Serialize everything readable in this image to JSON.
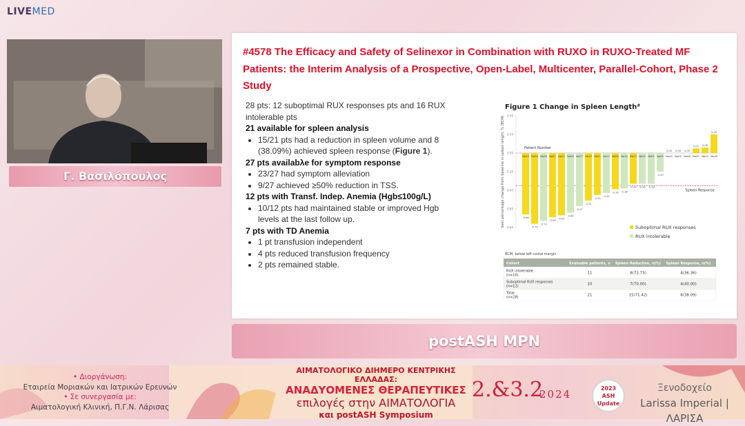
{
  "header": {
    "logo_live": "LIVE",
    "logo_med": "MED"
  },
  "speaker": {
    "name": "Γ. Βασιλόπουλος"
  },
  "slide": {
    "title": "#4578 The Efficacy and Safety of Selinexor in Combination with RUXO in RUXO-Treated MF Patients: the Interim Analysis of a Prospective, Open-Label, Multicenter, Parallel-Cohort, Phase 2 Study",
    "intro": "28 pts: 12 suboptimal RUX responses pts and 16 RUX intolerable pts",
    "sections": [
      {
        "heading": "21 available for spleen analysis",
        "bullets": [
          [
            "15/21 pts had a reduction in spleen volume and 8 (38.09%) achieved spleen response (",
            "Figure 1",
            ")."
          ]
        ]
      },
      {
        "heading": "27 pts availabλe for symptom response",
        "bullets": [
          [
            "23/27 had symptom alleviation"
          ],
          [
            "9/27 achieved ≥50% reduction in TSS."
          ]
        ]
      },
      {
        "heading": "12 pts with Transf. Indep. Anemia (Hgb≤100g/L)",
        "bullets": [
          [
            "10/12 pts had maintained stable or improved Hgb levels at the last follow up."
          ]
        ]
      },
      {
        "heading": "7 pts with TD Anemia",
        "bullets": [
          [
            "1 pt transfusion independent"
          ],
          [
            "4 pts reduced transfusion frequency"
          ],
          [
            "2 pts remained stable."
          ]
        ]
      }
    ],
    "figure": {
      "title": "Figure 1 Change in Spleen Length",
      "title_mark": "#",
      "y_label": "best percentage change from baseline in spleen length, % (BCM)",
      "x_label": "Patient Number",
      "ylim": [
        -0.8,
        0.4
      ],
      "yticks": [
        {
          "value": 0.4,
          "label": "0.40"
        },
        {
          "value": 0.2,
          "label": "0.20"
        },
        {
          "value": 0,
          "label": "0.00"
        },
        {
          "value": -0.2,
          "label": "-0.20"
        },
        {
          "value": -0.4,
          "label": "-0.40"
        },
        {
          "value": -0.6,
          "label": "-0.60"
        },
        {
          "value": -0.8,
          "label": "-0.80"
        }
      ],
      "reference": {
        "value": -0.35,
        "label": "Spleen Response"
      },
      "legend": [
        {
          "name": "Suboptimal RUX responses",
          "color": "#f6d81c"
        },
        {
          "name": "RUX intolerable",
          "color": "#cfe7bf"
        }
      ],
      "patients": [
        "No23",
        "No16",
        "No28",
        "No07",
        "No11",
        "No04",
        "No27",
        "No19",
        "No21",
        "No17",
        "No26",
        "No10",
        "No13",
        "No15",
        "No01",
        "No05",
        "No22",
        "No03",
        "No08",
        "No02",
        "No25",
        "No18"
      ],
      "values": [
        -0.66,
        -0.76,
        -0.73,
        -0.69,
        -0.67,
        -0.64,
        -0.57,
        -0.51,
        -0.45,
        -0.43,
        -0.39,
        -0.38,
        -0.33,
        -0.33,
        -0.33,
        -0.2,
        0,
        0,
        0,
        0.05,
        0.06,
        0.2
      ],
      "value_labels": [
        "-0.66",
        "-0.76",
        "-0.73",
        "-0.69",
        "-0.67",
        "-0.64",
        "-0.57",
        "-0.51",
        "-0.45",
        "-0.43",
        "-0.39",
        "-0.38",
        "-0.33",
        "-0.33",
        "-0.33",
        "-0.20",
        "0.00",
        "0.00",
        "0.00",
        "0.05",
        "0.06",
        "0.20"
      ],
      "groups": [
        0,
        0,
        1,
        0,
        0,
        1,
        1,
        0,
        0,
        1,
        0,
        1,
        0,
        1,
        1,
        1,
        1,
        1,
        1,
        0,
        0,
        0
      ],
      "note": "BCM, below left costal margin"
    },
    "table": {
      "header": [
        "Cohort",
        "Evaluable patients, n",
        "Spleen Reduction, n(%)",
        "Spleen Response, n(%)"
      ],
      "rows": [
        [
          "RUX intolerable\n(n=16)",
          "11",
          "8(72.73)",
          "4(36.36)"
        ],
        [
          "Suboptimal RUX responses\n(n=12)",
          "10",
          "7(70.00)",
          "4(40.00)"
        ],
        [
          "Total\n(n=28)",
          "21",
          "15(71.42)",
          "8(38.09)"
        ]
      ]
    }
  },
  "session": "postASH MPN",
  "footer": {
    "organizer_label": "• Διοργάνωση:",
    "organizer": "Εταιρεία Μοριακών και Ιατρικών Ερευνών",
    "partner_label": "• Σε συνεργασία με:",
    "partner": "Αιματολογική Κλινική, Π.Γ.Ν. Λάρισας",
    "event_line1": "ΑΙΜΑΤΟΛΟΓΙΚΟ ΔΙΗΜΕΡΟ ΚΕΝΤΡΙΚΗΣ ΕΛΛΑΔΑΣ:",
    "event_line2": "ΑΝΑΔΥΟΜΕΝΕΣ ΘΕΡΑΠΕΥΤΙΚΕΣ",
    "event_line3": "επιλογές στην ΑΙΜΑΤΟΛΟΓΙΑ",
    "event_line4": "και postASH Symposium",
    "dates": "2.&3.2",
    "year": "2024",
    "badge_year": "2023",
    "badge_name": "ASH",
    "badge_sub": "Update",
    "venue_label": "Ξενοδοχείο",
    "venue": "Larissa Imperial | ΛΑΡΙΣΑ"
  }
}
